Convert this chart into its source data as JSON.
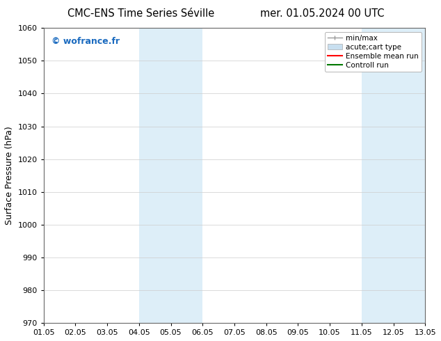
{
  "title_left": "CMC-ENS Time Series Séville",
  "title_right": "mer. 01.05.2024 00 UTC",
  "ylabel": "Surface Pressure (hPa)",
  "xlim": [
    1,
    13
  ],
  "ylim": [
    970,
    1060
  ],
  "yticks": [
    970,
    980,
    990,
    1000,
    1010,
    1020,
    1030,
    1040,
    1050,
    1060
  ],
  "xtick_labels": [
    "01.05",
    "02.05",
    "03.05",
    "04.05",
    "05.05",
    "06.05",
    "07.05",
    "08.05",
    "09.05",
    "10.05",
    "11.05",
    "12.05",
    "13.05"
  ],
  "xtick_positions": [
    1,
    2,
    3,
    4,
    5,
    6,
    7,
    8,
    9,
    10,
    11,
    12,
    13
  ],
  "shaded_bands": [
    {
      "xmin": 4.0,
      "xmax": 5.0,
      "color": "#ddeef8"
    },
    {
      "xmin": 5.0,
      "xmax": 6.0,
      "color": "#ddeef8"
    },
    {
      "xmin": 11.0,
      "xmax": 12.0,
      "color": "#ddeef8"
    },
    {
      "xmin": 12.0,
      "xmax": 13.0,
      "color": "#ddeef8"
    }
  ],
  "watermark": "© wofrance.fr",
  "watermark_color": "#1a6abf",
  "background_color": "#ffffff",
  "grid_color": "#cccccc",
  "legend_labels": [
    "min/max",
    "acute;cart type",
    "Ensemble mean run",
    "Controll run"
  ],
  "legend_colors": [
    "#999999",
    "#c8dff0",
    "#ff0000",
    "#007700"
  ],
  "title_fontsize": 10.5,
  "ylabel_fontsize": 9,
  "tick_fontsize": 8,
  "watermark_fontsize": 9,
  "legend_fontsize": 7.5
}
